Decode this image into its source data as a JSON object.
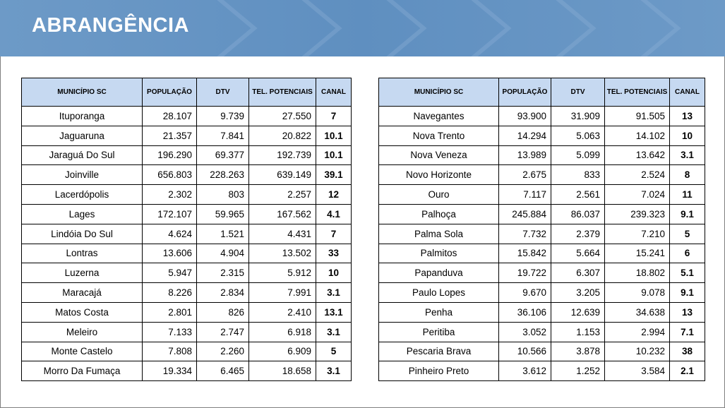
{
  "title": "ABRANGÊNCIA",
  "tables": [
    {
      "columns": [
        "MUNICÍPIO SC",
        "POPULAÇÃO",
        "DTV",
        "TEL. POTENCIAIS",
        "CANAL"
      ],
      "rows": [
        [
          "Ituporanga",
          "28.107",
          "9.739",
          "27.550",
          "7"
        ],
        [
          "Jaguaruna",
          "21.357",
          "7.841",
          "20.822",
          "10.1"
        ],
        [
          "Jaraguá Do Sul",
          "196.290",
          "69.377",
          "192.739",
          "10.1"
        ],
        [
          "Joinville",
          "656.803",
          "228.263",
          "639.149",
          "39.1"
        ],
        [
          "Lacerdópolis",
          "2.302",
          "803",
          "2.257",
          "12"
        ],
        [
          "Lages",
          "172.107",
          "59.965",
          "167.562",
          "4.1"
        ],
        [
          "Lindóia Do Sul",
          "4.624",
          "1.521",
          "4.431",
          "7"
        ],
        [
          "Lontras",
          "13.606",
          "4.904",
          "13.502",
          "33"
        ],
        [
          "Luzerna",
          "5.947",
          "2.315",
          "5.912",
          "10"
        ],
        [
          "Maracajá",
          "8.226",
          "2.834",
          "7.991",
          "3.1"
        ],
        [
          "Matos Costa",
          "2.801",
          "826",
          "2.410",
          "13.1"
        ],
        [
          "Meleiro",
          "7.133",
          "2.747",
          "6.918",
          "3.1"
        ],
        [
          "Monte Castelo",
          "7.808",
          "2.260",
          "6.909",
          "5"
        ],
        [
          "Morro Da Fumaça",
          "19.334",
          "6.465",
          "18.658",
          "3.1"
        ]
      ]
    },
    {
      "columns": [
        "MUNICÍPIO SC",
        "POPULAÇÃO",
        "DTV",
        "TEL. POTENCIAIS",
        "CANAL"
      ],
      "rows": [
        [
          "Navegantes",
          "93.900",
          "31.909",
          "91.505",
          "13"
        ],
        [
          "Nova Trento",
          "14.294",
          "5.063",
          "14.102",
          "10"
        ],
        [
          "Nova Veneza",
          "13.989",
          "5.099",
          "13.642",
          "3.1"
        ],
        [
          "Novo Horizonte",
          "2.675",
          "833",
          "2.524",
          "8"
        ],
        [
          "Ouro",
          "7.117",
          "2.561",
          "7.024",
          "11"
        ],
        [
          "Palhoça",
          "245.884",
          "86.037",
          "239.323",
          "9.1"
        ],
        [
          "Palma Sola",
          "7.732",
          "2.379",
          "7.210",
          "5"
        ],
        [
          "Palmitos",
          "15.842",
          "5.664",
          "15.241",
          "6"
        ],
        [
          "Papanduva",
          "19.722",
          "6.307",
          "18.802",
          "5.1"
        ],
        [
          "Paulo Lopes",
          "9.670",
          "3.205",
          "9.078",
          "9.1"
        ],
        [
          "Penha",
          "36.106",
          "12.639",
          "34.638",
          "13"
        ],
        [
          "Peritiba",
          "3.052",
          "1.153",
          "2.994",
          "7.1"
        ],
        [
          "Pescaria Brava",
          "10.566",
          "3.878",
          "10.232",
          "38"
        ],
        [
          "Pinheiro Preto",
          "3.612",
          "1.252",
          "3.584",
          "2.1"
        ]
      ]
    }
  ]
}
